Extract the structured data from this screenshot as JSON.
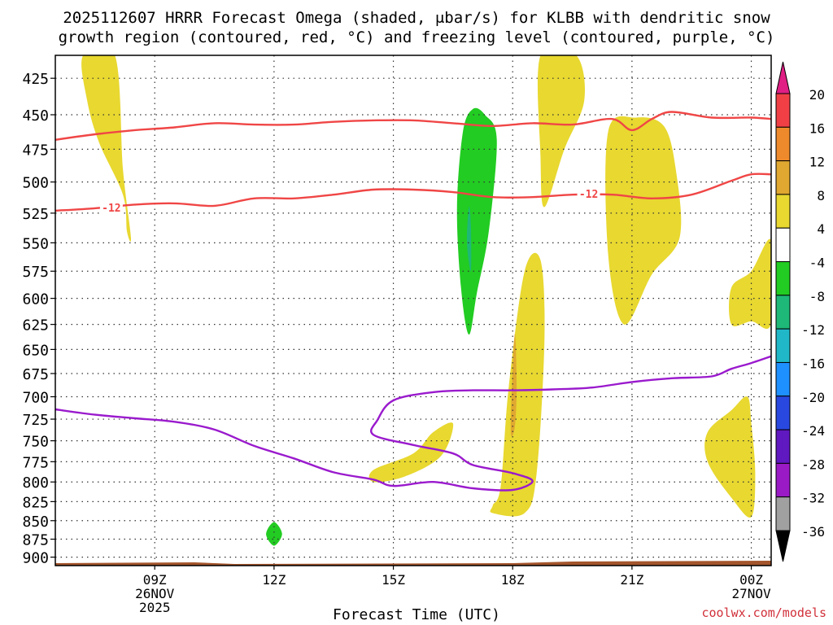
{
  "title_line1": "2025112607 HRRR Forecast Omega (shaded, μbar/s) for KLBB with dendritic snow",
  "title_line2": "growth region (contoured, red, °C) and freezing level (contoured, purple, °C)",
  "credit": "coolwx.com/models",
  "chart_data": {
    "type": "time-height",
    "xlabel": "Forecast Time (UTC)",
    "ylabel": "",
    "x_range_hours_since_run": [
      -0.5,
      17.5
    ],
    "x_ticks": [
      {
        "hour": 2,
        "label": [
          "09Z",
          "26NOV",
          "2025"
        ]
      },
      {
        "hour": 5,
        "label": [
          "12Z"
        ]
      },
      {
        "hour": 8,
        "label": [
          "15Z"
        ]
      },
      {
        "hour": 11,
        "label": [
          "18Z"
        ]
      },
      {
        "hour": 14,
        "label": [
          "21Z"
        ]
      },
      {
        "hour": 17,
        "label": [
          "00Z",
          "27NOV"
        ]
      }
    ],
    "y_ticks_mb": [
      425,
      450,
      475,
      500,
      525,
      550,
      575,
      600,
      625,
      650,
      675,
      700,
      725,
      750,
      775,
      800,
      825,
      850,
      875,
      900
    ],
    "y_range_mb": [
      410,
      912
    ],
    "y_scale": "log-pressure",
    "grid": "dotted",
    "colorbar": {
      "labels": [
        "20",
        "16",
        "12",
        "8",
        "4",
        "-4",
        "-8",
        "-12",
        "-16",
        "-20",
        "-24",
        "-28",
        "-32",
        "-36"
      ],
      "colors": [
        "#e01e84",
        "#f04046",
        "#ee8a2b",
        "#e0a830",
        "#e8d830",
        "#ffffff",
        "#22cc22",
        "#1eb878",
        "#20b8c8",
        "#1e90ff",
        "#2848e0",
        "#6018c0",
        "#9a1ac6",
        "#a0a0a0",
        "#000000"
      ]
    },
    "contours": [
      {
        "label": "-12",
        "color": "#f04646",
        "points": [
          [
            -0.5,
            523
          ],
          [
            0.5,
            521
          ],
          [
            1.5,
            518
          ],
          [
            2.5,
            517
          ],
          [
            3.5,
            519
          ],
          [
            4.5,
            513
          ],
          [
            5.5,
            513
          ],
          [
            6.5,
            510
          ],
          [
            7.5,
            506
          ],
          [
            8.5,
            506
          ],
          [
            9.5,
            508
          ],
          [
            10.5,
            512
          ],
          [
            11.5,
            512
          ],
          [
            12.5,
            510
          ],
          [
            13.5,
            510
          ],
          [
            14.5,
            513
          ],
          [
            15.5,
            510
          ],
          [
            16.5,
            499
          ],
          [
            17.0,
            494
          ],
          [
            17.5,
            494
          ]
        ],
        "labels_at_hour": [
          0.5,
          12.5
        ]
      },
      {
        "label": "",
        "color": "#f04646",
        "points": [
          [
            -0.5,
            468
          ],
          [
            0.5,
            464
          ],
          [
            1.5,
            461
          ],
          [
            2.5,
            459
          ],
          [
            3.5,
            456
          ],
          [
            4.5,
            457
          ],
          [
            5.5,
            457
          ],
          [
            6.5,
            455
          ],
          [
            7.5,
            454
          ],
          [
            8.5,
            454
          ],
          [
            9.5,
            456
          ],
          [
            10.5,
            458
          ],
          [
            11.5,
            456
          ],
          [
            12.5,
            457
          ],
          [
            13.5,
            453
          ],
          [
            14.0,
            461
          ],
          [
            14.5,
            453
          ],
          [
            15.0,
            448
          ],
          [
            16.0,
            452
          ],
          [
            17.0,
            452
          ],
          [
            17.5,
            453
          ]
        ]
      },
      {
        "label": "",
        "color": "#9a1acd",
        "points": [
          [
            -0.5,
            714
          ],
          [
            0.5,
            720
          ],
          [
            1.5,
            724
          ],
          [
            2.5,
            728
          ],
          [
            3.5,
            737
          ],
          [
            4.5,
            756
          ],
          [
            5.5,
            771
          ],
          [
            6.5,
            788
          ],
          [
            7.5,
            797
          ],
          [
            8.0,
            805
          ],
          [
            9.0,
            800
          ],
          [
            10.0,
            808
          ],
          [
            11.0,
            810
          ],
          [
            11.5,
            799
          ],
          [
            11.0,
            789
          ],
          [
            10.0,
            779
          ],
          [
            9.5,
            765
          ],
          [
            8.5,
            755
          ],
          [
            7.5,
            743
          ],
          [
            7.6,
            726
          ],
          [
            8.0,
            704
          ],
          [
            9.0,
            695
          ],
          [
            10.0,
            693
          ],
          [
            11.0,
            693
          ],
          [
            12.0,
            692
          ],
          [
            13.0,
            690
          ],
          [
            14.0,
            684
          ],
          [
            15.0,
            680
          ],
          [
            16.0,
            678
          ],
          [
            16.5,
            670
          ],
          [
            17.0,
            664
          ],
          [
            17.5,
            657
          ]
        ]
      }
    ],
    "omega_regions": [
      {
        "value": "4 to 8",
        "color": "#e8d830",
        "points": [
          [
            0.2,
            410
          ],
          [
            1.0,
            410
          ],
          [
            1.2,
            490
          ],
          [
            1.4,
            545
          ],
          [
            1.3,
            540
          ],
          [
            1.2,
            510
          ],
          [
            0.6,
            470
          ],
          [
            0.3,
            440
          ]
        ]
      },
      {
        "value": "4 to 8",
        "color": "#e8d830",
        "points": [
          [
            11.7,
            410
          ],
          [
            12.6,
            410
          ],
          [
            12.8,
            440
          ],
          [
            12.3,
            475
          ],
          [
            11.8,
            520
          ],
          [
            11.7,
            480
          ]
        ]
      },
      {
        "value": "4 to 8",
        "color": "#e8d830",
        "points": [
          [
            13.4,
            462
          ],
          [
            14.1,
            452
          ],
          [
            14.8,
            458
          ],
          [
            15.1,
            490
          ],
          [
            15.2,
            545
          ],
          [
            14.5,
            578
          ],
          [
            13.8,
            625
          ],
          [
            13.4,
            560
          ]
        ]
      },
      {
        "value": "4 to 8",
        "color": "#e8d830",
        "points": [
          [
            17.5,
            548
          ],
          [
            17.0,
            575
          ],
          [
            16.5,
            590
          ],
          [
            16.5,
            625
          ],
          [
            17.0,
            622
          ],
          [
            17.5,
            624
          ]
        ]
      },
      {
        "value": "4 to 8",
        "color": "#e8d830",
        "points": [
          [
            10.5,
            830
          ],
          [
            10.7,
            805
          ],
          [
            10.9,
            690
          ],
          [
            11.3,
            575
          ],
          [
            11.7,
            565
          ],
          [
            11.8,
            640
          ],
          [
            11.6,
            790
          ],
          [
            11.3,
            840
          ],
          [
            10.5,
            840
          ]
        ]
      },
      {
        "value": "4 to 8",
        "color": "#e8d830",
        "points": [
          [
            7.5,
            800
          ],
          [
            8.3,
            793
          ],
          [
            9.2,
            768
          ],
          [
            9.5,
            730
          ],
          [
            9.0,
            740
          ],
          [
            8.5,
            765
          ],
          [
            7.5,
            785
          ]
        ]
      },
      {
        "value": "4 to 8",
        "color": "#e8d830",
        "points": [
          [
            15.9,
            740
          ],
          [
            16.5,
            715
          ],
          [
            16.9,
            700
          ],
          [
            17.0,
            730
          ],
          [
            17.1,
            790
          ],
          [
            17.0,
            845
          ],
          [
            16.5,
            820
          ],
          [
            15.9,
            775
          ]
        ]
      },
      {
        "value": "8 to 12",
        "color": "#e0a830",
        "points": [
          [
            10.95,
            735
          ],
          [
            11.05,
            635
          ],
          [
            11.1,
            690
          ],
          [
            11.05,
            735
          ]
        ]
      },
      {
        "value": "-4 to -8",
        "color": "#22cc22",
        "points": [
          [
            9.6,
            520
          ],
          [
            9.75,
            462
          ],
          [
            10.0,
            446
          ],
          [
            10.3,
            450
          ],
          [
            10.6,
            468
          ],
          [
            10.4,
            540
          ],
          [
            10.1,
            595
          ],
          [
            9.9,
            635
          ],
          [
            9.7,
            590
          ]
        ]
      },
      {
        "value": "-8 to -12",
        "color": "#1eb878",
        "points": [
          [
            9.9,
            520
          ],
          [
            9.95,
            535
          ],
          [
            9.95,
            575
          ],
          [
            9.85,
            550
          ]
        ]
      },
      {
        "value": "-4 to -8",
        "color": "#22cc22",
        "points": [
          [
            4.8,
            868
          ],
          [
            5.0,
            852
          ],
          [
            5.2,
            868
          ],
          [
            5.0,
            884
          ]
        ]
      }
    ],
    "terrain_mb": 912
  }
}
